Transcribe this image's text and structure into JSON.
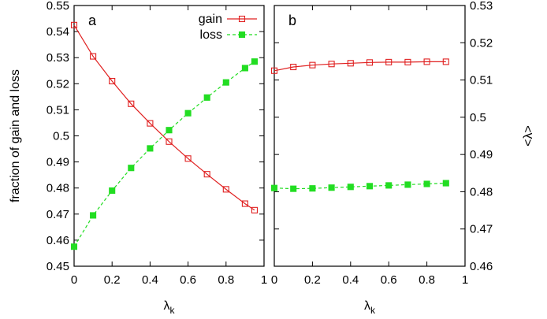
{
  "chart_data": [
    {
      "type": "line",
      "panel_label": "a",
      "xlabel_base": "λ",
      "xlabel_sub": "k",
      "ylabel": "fraction of gain and loss",
      "xlim": [
        0,
        1
      ],
      "ylim": [
        0.45,
        0.55
      ],
      "x_ticks": [
        "0",
        "0.2",
        "0.4",
        "0.6",
        "0.8",
        "1"
      ],
      "y_ticks": [
        "0.45",
        "0.46",
        "0.47",
        "0.48",
        "0.49",
        "0.5",
        "0.51",
        "0.52",
        "0.53",
        "0.54",
        "0.55"
      ],
      "y_axis_side": "left",
      "legend_position": "top-right",
      "series": [
        {
          "name": "gain",
          "color": "#e02020",
          "marker": "open-square",
          "line": "solid",
          "x": [
            0,
            0.1,
            0.2,
            0.3,
            0.4,
            0.5,
            0.6,
            0.7,
            0.8,
            0.9,
            0.95
          ],
          "y": [
            0.5425,
            0.5305,
            0.521,
            0.5123,
            0.5048,
            0.4978,
            0.4913,
            0.4853,
            0.4795,
            0.474,
            0.4715
          ]
        },
        {
          "name": "loss",
          "color": "#22dd22",
          "marker": "filled-square",
          "line": "dashed",
          "x": [
            0,
            0.1,
            0.2,
            0.3,
            0.4,
            0.5,
            0.6,
            0.7,
            0.8,
            0.9,
            0.95
          ],
          "y": [
            0.4575,
            0.4695,
            0.479,
            0.4877,
            0.4952,
            0.5022,
            0.5087,
            0.5147,
            0.5205,
            0.526,
            0.5285
          ]
        }
      ]
    },
    {
      "type": "line",
      "panel_label": "b",
      "xlabel_base": "λ",
      "xlabel_sub": "k",
      "ylabel": "<λ>",
      "xlim": [
        0,
        1
      ],
      "ylim": [
        0.46,
        0.53
      ],
      "x_ticks": [
        "0",
        "0.2",
        "0.4",
        "0.6",
        "0.8",
        "1"
      ],
      "y_ticks": [
        "0.46",
        "0.47",
        "0.48",
        "0.49",
        "0.5",
        "0.51",
        "0.52",
        "0.53"
      ],
      "y_axis_side": "right",
      "series": [
        {
          "color": "#e02020",
          "marker": "open-square",
          "line": "solid",
          "x": [
            0,
            0.1,
            0.2,
            0.3,
            0.4,
            0.5,
            0.6,
            0.7,
            0.8,
            0.9
          ],
          "y": [
            0.5125,
            0.5135,
            0.514,
            0.5143,
            0.5145,
            0.5147,
            0.5148,
            0.5148,
            0.5149,
            0.5149
          ]
        },
        {
          "color": "#22dd22",
          "marker": "filled-square",
          "line": "dashed",
          "x": [
            0,
            0.1,
            0.2,
            0.3,
            0.4,
            0.5,
            0.6,
            0.7,
            0.8,
            0.9
          ],
          "y": [
            0.481,
            0.4808,
            0.4809,
            0.4811,
            0.4813,
            0.4815,
            0.4817,
            0.4819,
            0.4821,
            0.4823
          ]
        }
      ]
    }
  ]
}
